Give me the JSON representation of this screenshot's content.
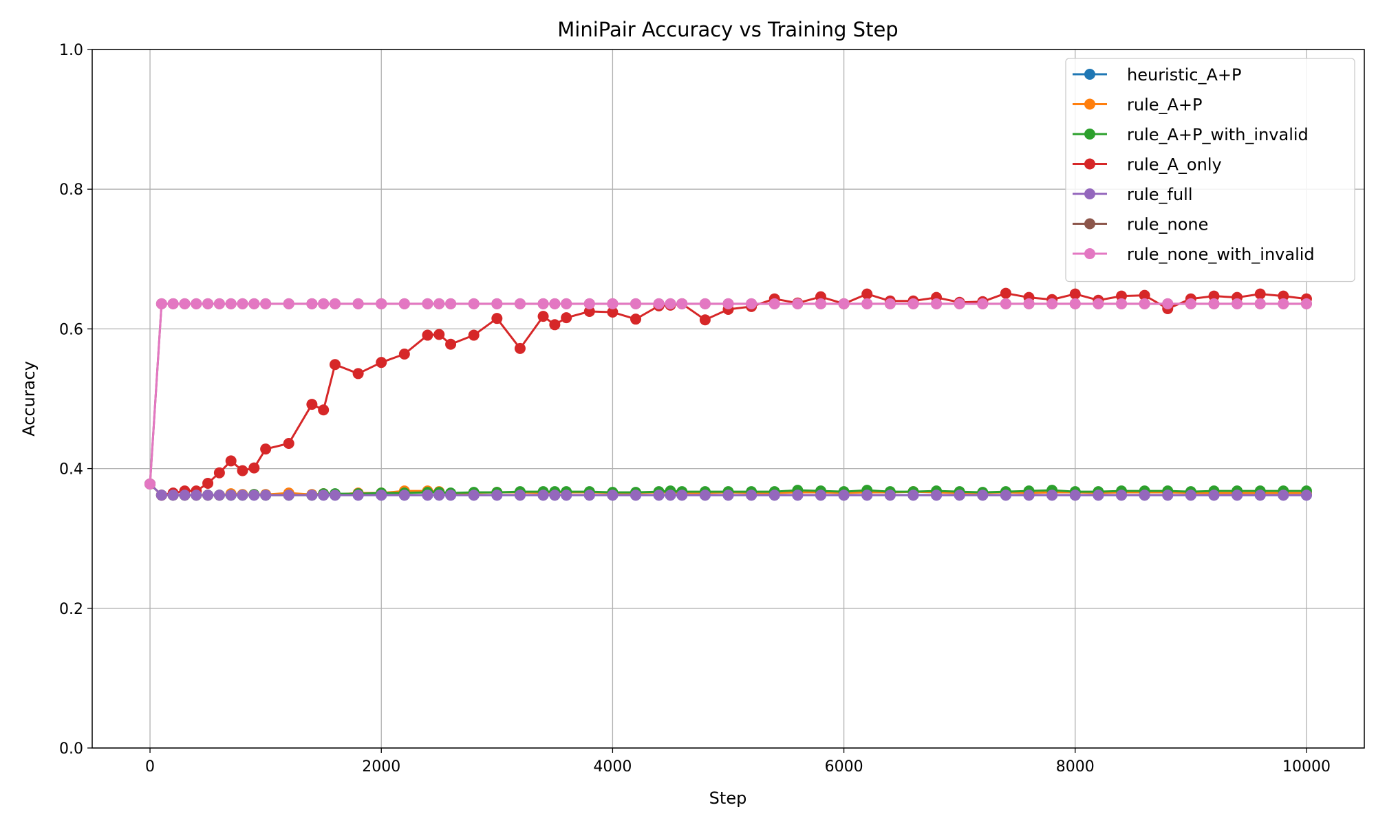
{
  "chart_data": {
    "type": "line",
    "title": "MiniPair Accuracy vs Training Step",
    "xlabel": "Step",
    "ylabel": "Accuracy",
    "xlim": [
      -500,
      10500
    ],
    "ylim": [
      0.0,
      1.0
    ],
    "xticks": [
      0,
      2000,
      4000,
      6000,
      8000,
      10000
    ],
    "yticks": [
      0.0,
      0.2,
      0.4,
      0.6,
      0.8,
      1.0
    ],
    "xtick_labels": [
      "0",
      "2000",
      "4000",
      "6000",
      "8000",
      "10000"
    ],
    "ytick_labels": [
      "0.0",
      "0.2",
      "0.4",
      "0.6",
      "0.8",
      "1.0"
    ],
    "grid": true,
    "legend_position": "top-right",
    "x": [
      0,
      100,
      200,
      300,
      400,
      500,
      600,
      700,
      800,
      900,
      1000,
      1200,
      1400,
      1500,
      1600,
      1800,
      2000,
      2200,
      2400,
      2500,
      2600,
      2800,
      3000,
      3200,
      3400,
      3500,
      3600,
      3800,
      4000,
      4200,
      4400,
      4500,
      4600,
      4800,
      5000,
      5200,
      5400,
      5600,
      5800,
      6000,
      6200,
      6400,
      6600,
      6800,
      7000,
      7200,
      7400,
      7600,
      7800,
      8000,
      8200,
      8400,
      8600,
      8800,
      9000,
      9200,
      9400,
      9600,
      9800,
      10000
    ],
    "series": [
      {
        "name": "heuristic_A+P",
        "color": "#1f77b4",
        "values": [
          0.378,
          0.362,
          0.362,
          0.362,
          0.362,
          0.362,
          0.362,
          0.362,
          0.362,
          0.362,
          0.362,
          0.362,
          0.362,
          0.362,
          0.362,
          0.362,
          0.362,
          0.362,
          0.362,
          0.362,
          0.362,
          0.362,
          0.362,
          0.362,
          0.362,
          0.362,
          0.362,
          0.362,
          0.362,
          0.362,
          0.362,
          0.362,
          0.362,
          0.362,
          0.362,
          0.362,
          0.362,
          0.362,
          0.362,
          0.362,
          0.362,
          0.362,
          0.362,
          0.362,
          0.362,
          0.362,
          0.362,
          0.362,
          0.362,
          0.362,
          0.362,
          0.362,
          0.362,
          0.362,
          0.362,
          0.362,
          0.362,
          0.362,
          0.362,
          0.362
        ]
      },
      {
        "name": "rule_A+P",
        "color": "#ff7f0e",
        "values": [
          0.378,
          0.362,
          0.362,
          0.362,
          0.362,
          0.362,
          0.362,
          0.364,
          0.363,
          0.363,
          0.363,
          0.365,
          0.363,
          0.364,
          0.363,
          0.365,
          0.365,
          0.368,
          0.368,
          0.367,
          0.364,
          0.365,
          0.366,
          0.366,
          0.365,
          0.366,
          0.366,
          0.366,
          0.365,
          0.365,
          0.366,
          0.366,
          0.365,
          0.365,
          0.366,
          0.365,
          0.365,
          0.366,
          0.366,
          0.365,
          0.366,
          0.366,
          0.367,
          0.366,
          0.365,
          0.365,
          0.366,
          0.365,
          0.366,
          0.366,
          0.365,
          0.366,
          0.366,
          0.366,
          0.365,
          0.365,
          0.365,
          0.365,
          0.365,
          0.365
        ]
      },
      {
        "name": "rule_A+P_with_invalid",
        "color": "#2ca02c",
        "values": [
          0.378,
          0.362,
          0.362,
          0.362,
          0.362,
          0.362,
          0.362,
          0.362,
          0.362,
          0.363,
          0.362,
          0.362,
          0.362,
          0.364,
          0.364,
          0.364,
          0.365,
          0.365,
          0.366,
          0.366,
          0.365,
          0.366,
          0.366,
          0.367,
          0.367,
          0.367,
          0.367,
          0.367,
          0.366,
          0.366,
          0.367,
          0.368,
          0.367,
          0.367,
          0.367,
          0.367,
          0.367,
          0.369,
          0.368,
          0.367,
          0.369,
          0.367,
          0.367,
          0.368,
          0.367,
          0.366,
          0.367,
          0.368,
          0.369,
          0.367,
          0.367,
          0.368,
          0.368,
          0.368,
          0.367,
          0.368,
          0.368,
          0.368,
          0.368,
          0.368
        ]
      },
      {
        "name": "rule_A_only",
        "color": "#d62728",
        "values": [
          0.378,
          0.362,
          0.365,
          0.368,
          0.368,
          0.379,
          0.394,
          0.411,
          0.397,
          0.401,
          0.428,
          0.436,
          0.492,
          0.484,
          0.549,
          0.536,
          0.552,
          0.564,
          0.591,
          0.592,
          0.578,
          0.591,
          0.615,
          0.572,
          0.618,
          0.606,
          0.616,
          0.625,
          0.624,
          0.614,
          0.633,
          0.634,
          0.636,
          0.613,
          0.628,
          0.632,
          0.643,
          0.637,
          0.646,
          0.636,
          0.65,
          0.64,
          0.64,
          0.645,
          0.638,
          0.639,
          0.651,
          0.645,
          0.642,
          0.65,
          0.641,
          0.647,
          0.648,
          0.629,
          0.643,
          0.647,
          0.645,
          0.65,
          0.647,
          0.643
        ]
      },
      {
        "name": "rule_full",
        "color": "#9467bd",
        "values": [
          0.378,
          0.362,
          0.362,
          0.362,
          0.362,
          0.362,
          0.362,
          0.362,
          0.362,
          0.362,
          0.362,
          0.362,
          0.362,
          0.362,
          0.362,
          0.362,
          0.362,
          0.362,
          0.362,
          0.362,
          0.362,
          0.362,
          0.362,
          0.362,
          0.362,
          0.362,
          0.362,
          0.362,
          0.362,
          0.362,
          0.362,
          0.362,
          0.362,
          0.362,
          0.362,
          0.362,
          0.362,
          0.362,
          0.362,
          0.362,
          0.362,
          0.362,
          0.362,
          0.362,
          0.362,
          0.362,
          0.362,
          0.362,
          0.362,
          0.362,
          0.362,
          0.362,
          0.362,
          0.362,
          0.362,
          0.362,
          0.362,
          0.362,
          0.362,
          0.362
        ]
      },
      {
        "name": "rule_none",
        "color": "#8c564b",
        "values": [
          0.378,
          0.636,
          0.636,
          0.636,
          0.636,
          0.636,
          0.636,
          0.636,
          0.636,
          0.636,
          0.636,
          0.636,
          0.636,
          0.636,
          0.636,
          0.636,
          0.636,
          0.636,
          0.636,
          0.636,
          0.636,
          0.636,
          0.636,
          0.636,
          0.636,
          0.636,
          0.636,
          0.636,
          0.636,
          0.636,
          0.636,
          0.636,
          0.636,
          0.636,
          0.636,
          0.636,
          0.636,
          0.636,
          0.636,
          0.636,
          0.636,
          0.636,
          0.636,
          0.636,
          0.636,
          0.636,
          0.636,
          0.636,
          0.636,
          0.636,
          0.636,
          0.636,
          0.636,
          0.636,
          0.636,
          0.636,
          0.636,
          0.636,
          0.636,
          0.636
        ]
      },
      {
        "name": "rule_none_with_invalid",
        "color": "#e377c2",
        "values": [
          0.378,
          0.636,
          0.636,
          0.636,
          0.636,
          0.636,
          0.636,
          0.636,
          0.636,
          0.636,
          0.636,
          0.636,
          0.636,
          0.636,
          0.636,
          0.636,
          0.636,
          0.636,
          0.636,
          0.636,
          0.636,
          0.636,
          0.636,
          0.636,
          0.636,
          0.636,
          0.636,
          0.636,
          0.636,
          0.636,
          0.636,
          0.636,
          0.636,
          0.636,
          0.636,
          0.636,
          0.636,
          0.636,
          0.636,
          0.636,
          0.636,
          0.636,
          0.636,
          0.636,
          0.636,
          0.636,
          0.636,
          0.636,
          0.636,
          0.636,
          0.636,
          0.636,
          0.636,
          0.636,
          0.636,
          0.636,
          0.636,
          0.636,
          0.636,
          0.636
        ]
      }
    ]
  }
}
